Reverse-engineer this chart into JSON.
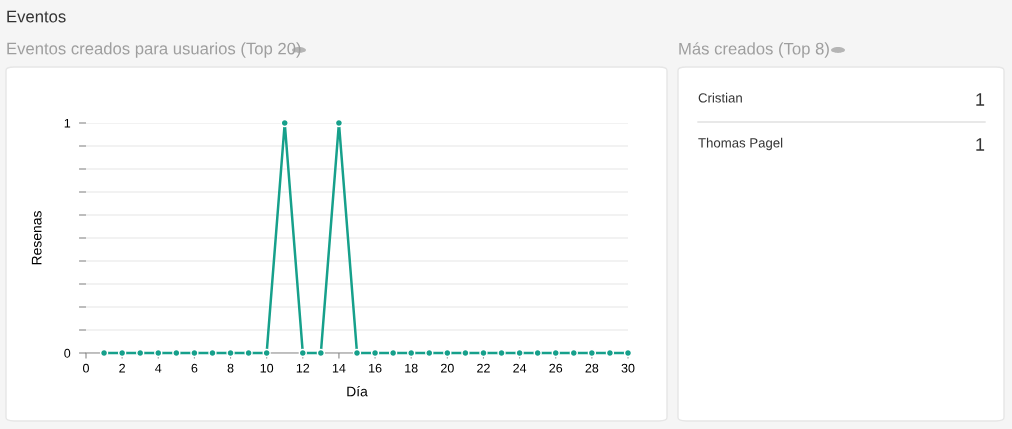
{
  "chart_data": [
    {
      "type": "line",
      "title": "Eventos creados para usuarios (Top 20)",
      "annotations": [
        "Eventos"
      ],
      "xlabel": "Día",
      "ylabel": "Resenas",
      "x": [
        1,
        2,
        3,
        4,
        5,
        6,
        7,
        8,
        9,
        10,
        11,
        12,
        13,
        14,
        15,
        16,
        17,
        18,
        19,
        20,
        21,
        22,
        23,
        24,
        25,
        26,
        27,
        28,
        29,
        30
      ],
      "series": [
        {
          "color": "#16a08b",
          "values": [
            0,
            0,
            0,
            0,
            0,
            0,
            0,
            0,
            0,
            0,
            1,
            0,
            0,
            1,
            0,
            0,
            0,
            0,
            0,
            0,
            0,
            0,
            0,
            0,
            0,
            0,
            0,
            0,
            0,
            0
          ]
        }
      ],
      "xlim": [
        0,
        30
      ],
      "xticks": [
        0,
        2,
        4,
        6,
        8,
        10,
        12,
        14,
        16,
        18,
        20,
        22,
        24,
        26,
        28,
        30
      ],
      "ylim": [
        0,
        1
      ],
      "yticks": [
        0,
        {
          "value": 0.1,
          "label": null
        },
        {
          "value": 0.2,
          "label": null
        },
        {
          "value": 0.3,
          "label": null
        },
        {
          "value": 0.4,
          "label": null
        },
        {
          "value": 0.5,
          "label": null
        },
        {
          "value": 0.6,
          "label": null
        },
        {
          "value": 0.7,
          "label": null
        },
        {
          "value": 0.8,
          "label": null
        },
        {
          "value": 0.9,
          "label": null
        },
        1
      ],
      "grid": "y",
      "marker": "circle",
      "line_style": "solid"
    },
    {
      "type": "other",
      "title": "Más creados (Top 8)",
      "categories": [
        "Cristian",
        "Thomas Pagel"
      ],
      "values": [
        1,
        1
      ],
      "data_labels": true
    }
  ]
}
